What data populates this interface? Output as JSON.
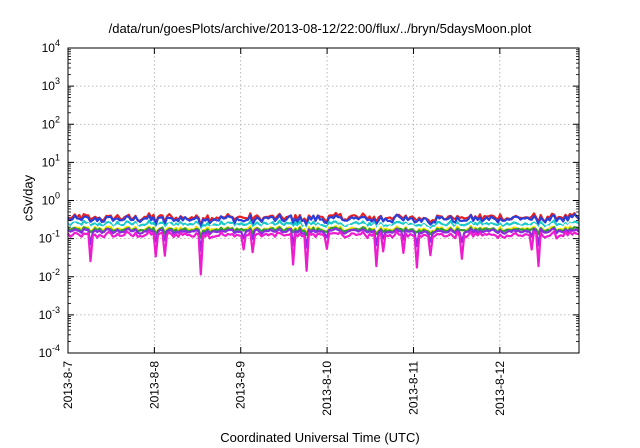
{
  "chart_data": {
    "type": "line",
    "title": "/data/run/goesPlots/archive/2013-08-12/22:00/flux/../bryn/5daysMoon.plot",
    "xlabel": "Coordinated Universal Time (UTC)",
    "ylabel": "cSv/day",
    "x_tick_labels": [
      "2013-8-7",
      "2013-8-8",
      "2013-8-9",
      "2013-8-10",
      "2013-8-11",
      "2013-8-12"
    ],
    "xlim": [
      "2013-08-07T00:00",
      "2013-08-12T22:00"
    ],
    "yscale": "log",
    "ylim": [
      0.0001,
      10000
    ],
    "y_ticks": [
      {
        "value": 0.0001,
        "base": "10",
        "exp": "-4"
      },
      {
        "value": 0.001,
        "base": "10",
        "exp": "-3"
      },
      {
        "value": 0.01,
        "base": "10",
        "exp": "-2"
      },
      {
        "value": 0.1,
        "base": "10",
        "exp": "-1"
      },
      {
        "value": 1,
        "base": "10",
        "exp": "0"
      },
      {
        "value": 10,
        "base": "10",
        "exp": "1"
      },
      {
        "value": 100,
        "base": "10",
        "exp": "2"
      },
      {
        "value": 1000,
        "base": "10",
        "exp": "3"
      },
      {
        "value": 10000,
        "base": "10",
        "exp": "4"
      }
    ],
    "grid": true,
    "sample_count": 228,
    "series": [
      {
        "color": "#e8201f",
        "level": 0.36,
        "amp": 0.12,
        "spike_depth": 0.1
      },
      {
        "color": "#2a3fd9",
        "level": 0.33,
        "amp": 0.12,
        "spike_depth": 0.1
      },
      {
        "color": "#18c9c9",
        "level": 0.24,
        "amp": 0.1,
        "spike_depth": 0.08
      },
      {
        "color": "#ffffff",
        "level": 0.21,
        "amp": 0.08,
        "spike_depth": 0.08
      },
      {
        "color": "#f2e600",
        "level": 0.18,
        "amp": 0.08,
        "spike_depth": 0.08
      },
      {
        "color": "#2e9a3a",
        "level": 0.17,
        "amp": 0.08,
        "spike_depth": 0.08
      },
      {
        "color": "#8a2be2",
        "level": 0.155,
        "amp": 0.08,
        "spike_depth": 0.3
      },
      {
        "color": "#ee1ccf",
        "level": 0.125,
        "amp": 0.1,
        "spike_depth": 0.65
      }
    ]
  }
}
